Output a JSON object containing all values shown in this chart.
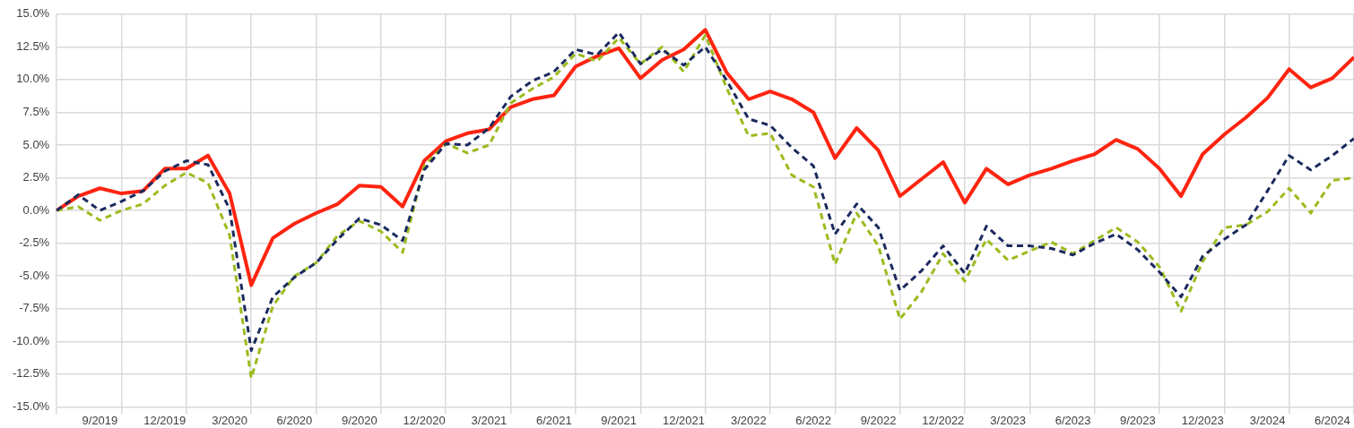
{
  "chart_data": {
    "type": "line",
    "categories": [
      null,
      null,
      "9/2019",
      null,
      null,
      "12/2019",
      null,
      null,
      "3/2020",
      null,
      null,
      "6/2020",
      null,
      null,
      "9/2020",
      null,
      null,
      "12/2020",
      null,
      null,
      "3/2021",
      null,
      null,
      "6/2021",
      null,
      null,
      "9/2021",
      null,
      null,
      "12/2021",
      null,
      null,
      "3/2022",
      null,
      null,
      "6/2022",
      null,
      null,
      "9/2022",
      null,
      null,
      "12/2022",
      null,
      null,
      "3/2023",
      null,
      null,
      "6/2023",
      null,
      null,
      "9/2023",
      null,
      null,
      "12/2023",
      null,
      null,
      "3/2024",
      null,
      null,
      "6/2024",
      null
    ],
    "series": [
      {
        "color": "#1b2a5e",
        "line_style": "dashed",
        "values": [
          0,
          1.2,
          0,
          0.7,
          1.5,
          3.0,
          3.8,
          3.5,
          0.1,
          -10.7,
          -6.6,
          -5.1,
          -4.0,
          -2.2,
          -0.6,
          -1.1,
          -2.3,
          3.1,
          5.1,
          5.0,
          6.3,
          8.7,
          9.9,
          10.6,
          12.3,
          11.9,
          13.6,
          11.2,
          12.3,
          11.1,
          12.5,
          9.9,
          7.0,
          6.5,
          4.8,
          3.4,
          -1.8,
          0.5,
          -1.3,
          -6.1,
          -4.6,
          -2.7,
          -4.8,
          -1.2,
          -2.7,
          -2.7,
          -2.9,
          -3.4,
          -2.5,
          -1.8,
          -3.0,
          -4.7,
          -6.6,
          -3.5,
          -2.2,
          -1.1,
          1.5,
          4.2,
          3.1,
          4.2,
          5.5
        ]
      },
      {
        "color": "#9bbb1e",
        "line_style": "dashed",
        "values": [
          0,
          0.3,
          -0.75,
          0,
          0.5,
          1.9,
          2.9,
          2.1,
          -1.9,
          -12.8,
          -7.3,
          -5.0,
          -4.0,
          -1.9,
          -0.8,
          -1.6,
          -3.2,
          3.4,
          5.1,
          4.4,
          5.0,
          8.2,
          9.3,
          10.2,
          12.0,
          11.4,
          13.2,
          11.2,
          12.5,
          10.6,
          13.4,
          9.3,
          5.7,
          5.9,
          2.7,
          1.8,
          -4.1,
          -0.2,
          -2.7,
          -8.3,
          -6.2,
          -3.3,
          -5.4,
          -2.2,
          -3.8,
          -3.1,
          -2.4,
          -3.3,
          -2.3,
          -1.3,
          -2.4,
          -4.3,
          -7.7,
          -3.9,
          -1.3,
          -1.1,
          -0.1,
          1.7,
          -0.2,
          2.3,
          2.5
        ]
      },
      {
        "color": "#ff2410",
        "line_style": "solid",
        "values": [
          0,
          1.1,
          1.7,
          1.3,
          1.5,
          3.2,
          3.2,
          4.2,
          1.3,
          -5.7,
          -2.1,
          -1.0,
          -0.2,
          0.5,
          1.9,
          1.8,
          0.3,
          3.8,
          5.3,
          5.9,
          6.2,
          7.9,
          8.5,
          8.8,
          11.0,
          11.8,
          12.4,
          10.1,
          11.5,
          12.3,
          13.8,
          10.5,
          8.5,
          9.1,
          8.5,
          7.5,
          4.0,
          6.3,
          4.6,
          1.1,
          2.4,
          3.7,
          0.6,
          3.2,
          2.0,
          2.7,
          3.2,
          3.8,
          4.3,
          5.4,
          4.7,
          3.2,
          1.1,
          4.3,
          5.8,
          7.1,
          8.6,
          10.8,
          9.4,
          10.1,
          11.7
        ]
      }
    ],
    "ylim": [
      -15,
      15
    ],
    "yticks": [
      {
        "value": -15,
        "label": "-15.0%"
      },
      {
        "value": -12.5,
        "label": "-12.5%"
      },
      {
        "value": -10,
        "label": "-10.0%"
      },
      {
        "value": -7.5,
        "label": "-7.5%"
      },
      {
        "value": -5,
        "label": "-5.0%"
      },
      {
        "value": -2.5,
        "label": "-2.5%"
      },
      {
        "value": 0,
        "label": "0.0%"
      },
      {
        "value": 2.5,
        "label": "2.5%"
      },
      {
        "value": 5,
        "label": "5.0%"
      },
      {
        "value": 7.5,
        "label": "7.5%"
      },
      {
        "value": 10,
        "label": "10.0%"
      },
      {
        "value": 12.5,
        "label": "12.5%"
      },
      {
        "value": 15,
        "label": "15.0%"
      }
    ],
    "grid": true,
    "legend": false,
    "marker": "none"
  }
}
